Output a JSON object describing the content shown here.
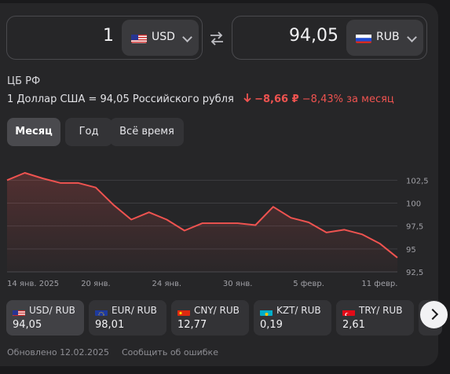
{
  "converter": {
    "from_amount": "1",
    "from_code": "USD",
    "to_amount": "94,05",
    "to_code": "RUB",
    "swap_icon": "swap-arrows-icon"
  },
  "source": "ЦБ РФ",
  "rate": {
    "text": "1 Доллар США = 94,05 Российского рубля",
    "change": "−8,66 ₽",
    "percent": "−8,43%",
    "period": "за месяц",
    "down_color": "#ef5350"
  },
  "tabs": [
    {
      "label": "Месяц"
    },
    {
      "label": "Год"
    },
    {
      "label": "Всё время"
    }
  ],
  "chart_data": {
    "type": "area",
    "x": [
      "14 янв. 2025",
      "15 янв.",
      "16 янв.",
      "17 янв.",
      "18 янв.",
      "20 янв.",
      "21 янв.",
      "22 янв.",
      "23 янв.",
      "24 янв.",
      "25 янв.",
      "28 янв.",
      "29 янв.",
      "30 янв.",
      "31 янв.",
      "1 февр.",
      "4 февр.",
      "5 февр.",
      "6 февр.",
      "7 февр.",
      "8 февр.",
      "11 февр.",
      "12 февр."
    ],
    "series": [
      {
        "values": [
          102.5,
          103.3,
          102.7,
          102.2,
          102.2,
          101.7,
          99.8,
          98.2,
          99.0,
          98.2,
          97.0,
          97.8,
          97.8,
          97.8,
          97.6,
          99.6,
          98.4,
          97.9,
          96.8,
          97.1,
          96.6,
          95.6,
          94.05
        ]
      }
    ],
    "xticks": [
      "14 янв. 2025",
      "20 янв.",
      "24 янв.",
      "30 янв.",
      "5 февр.",
      "11 февр."
    ],
    "yticks": [
      "102,5",
      "100",
      "97,5",
      "95",
      "92,5"
    ],
    "ylim": [
      92.5,
      104.5
    ],
    "grid": true,
    "line_color": "#ef5350"
  },
  "tiles": [
    {
      "label": "USD/ RUB",
      "value": "94,05",
      "flag": "us"
    },
    {
      "label": "EUR/ RUB",
      "value": "98,01",
      "flag": "eu"
    },
    {
      "label": "CNY/ RUB",
      "value": "12,77",
      "flag": "cn"
    },
    {
      "label": "KZT/ RUB",
      "value": "0,19",
      "flag": "kz"
    },
    {
      "label": "TRY/ RUB",
      "value": "2,61",
      "flag": "tr"
    }
  ],
  "footer": {
    "updated": "Обновлено 12.02.2025",
    "report": "Сообщить об ошибке"
  }
}
